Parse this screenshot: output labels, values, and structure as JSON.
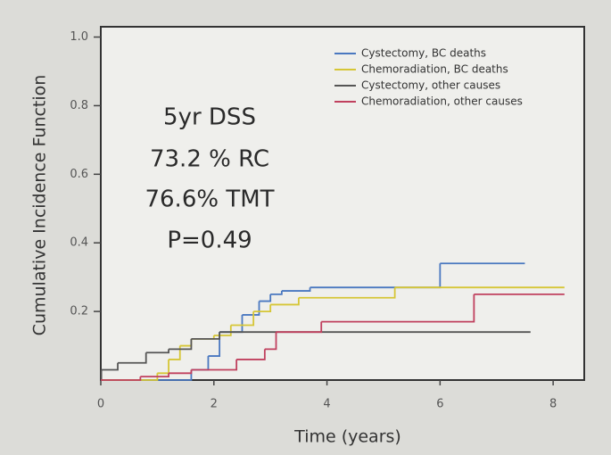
{
  "chart_data": {
    "type": "step",
    "x_label": "Time (years)",
    "y_label": "Cumulative Incidence Function",
    "annotations": [
      "5yr DSS",
      "73.2 % RC",
      "76.6% TMT",
      "P=0.49"
    ],
    "xlim": [
      0,
      8.55
    ],
    "ylim": [
      0,
      1.03
    ],
    "xticks": [
      0,
      2,
      4,
      6,
      8
    ],
    "yticks": [
      0.2,
      0.4,
      0.6,
      0.8,
      {
        "value": 1.0,
        "label": "1.0"
      }
    ],
    "legend": "upper right",
    "series": [
      {
        "name": "Cystectomy, BC deaths",
        "color": "#4a78c0",
        "x": [
          0,
          1.6,
          1.9,
          2.1,
          2.5,
          2.8,
          3.0,
          3.2,
          3.7,
          6.0,
          7.5
        ],
        "values": [
          0,
          0.03,
          0.07,
          0.14,
          0.19,
          0.23,
          0.25,
          0.26,
          0.27,
          0.34,
          0.34
        ]
      },
      {
        "name": "Chemoradiation, BC deaths",
        "color": "#d6c636",
        "x": [
          0,
          1.0,
          1.2,
          1.4,
          1.6,
          2.0,
          2.3,
          2.7,
          3.0,
          3.5,
          5.2,
          8.2
        ],
        "values": [
          0,
          0.02,
          0.06,
          0.1,
          0.12,
          0.13,
          0.16,
          0.2,
          0.22,
          0.24,
          0.27,
          0.27
        ]
      },
      {
        "name": "Cystectomy, other causes",
        "color": "#555555",
        "x": [
          0,
          0.01,
          0.3,
          0.8,
          1.2,
          1.6,
          2.1,
          7.6
        ],
        "values": [
          0,
          0.03,
          0.05,
          0.08,
          0.09,
          0.12,
          0.14,
          0.14
        ]
      },
      {
        "name": "Chemoradiation, other causes",
        "color": "#c0405e",
        "x": [
          0,
          0.7,
          1.2,
          1.6,
          2.4,
          2.9,
          3.1,
          3.9,
          6.6,
          8.2
        ],
        "values": [
          0,
          0.01,
          0.02,
          0.03,
          0.06,
          0.09,
          0.14,
          0.17,
          0.25,
          0.25
        ]
      }
    ]
  }
}
